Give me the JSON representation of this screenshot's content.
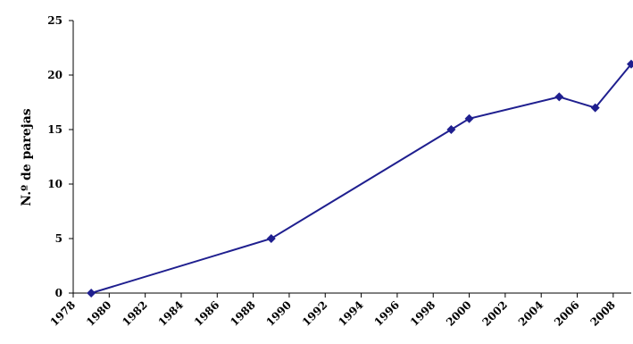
{
  "chart_data": {
    "type": "line",
    "title": "",
    "xlabel": "",
    "ylabel": "N.º de parejas",
    "xlim": [
      1978,
      2009
    ],
    "ylim": [
      0,
      25
    ],
    "x_ticks": [
      1978,
      1980,
      1982,
      1984,
      1986,
      1988,
      1990,
      1992,
      1994,
      1996,
      1998,
      2000,
      2002,
      2004,
      2006,
      2008
    ],
    "x_tick_labels": [
      "1978",
      "1980",
      "1982",
      "1984",
      "1986",
      "1988",
      "1990",
      "1992",
      "1994",
      "1996",
      "1998",
      "2000",
      "2002",
      "2004",
      "2006",
      "2008"
    ],
    "y_ticks": [
      0,
      5,
      10,
      15,
      20,
      25
    ],
    "grid": false,
    "legend": "none",
    "line_color": "#1f1f8f",
    "series": [
      {
        "x": [
          1979,
          1989,
          1999,
          2000,
          2005,
          2007,
          2009
        ],
        "y": [
          0,
          5,
          15,
          16,
          18,
          17,
          21
        ]
      }
    ]
  }
}
